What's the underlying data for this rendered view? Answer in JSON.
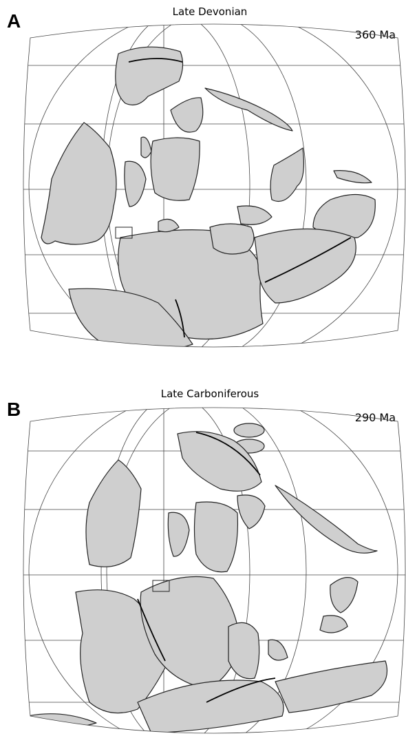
{
  "panels": [
    {
      "label": "A",
      "title": "Late Devonian",
      "age": "360 Ma"
    },
    {
      "label": "B",
      "title": "Late Carboniferous",
      "age": "290 Ma"
    }
  ]
}
